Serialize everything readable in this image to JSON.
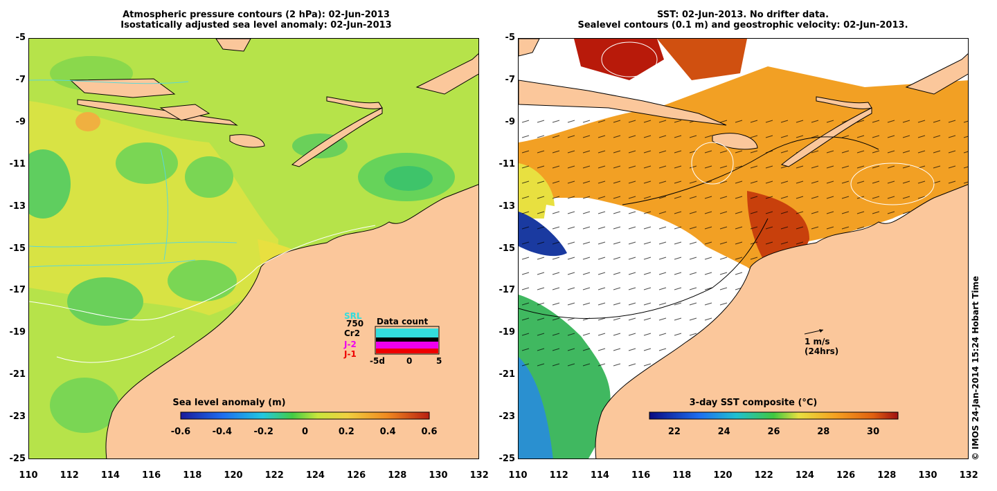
{
  "left_map": {
    "title_line1": "Atmospheric pressure contours (2 hPa): 02-Jun-2013",
    "title_line2": "Isostatically adjusted sea level anomaly: 02-Jun-2013",
    "colorbar": {
      "title": "Sea level anomaly (m)",
      "range": [
        -0.6,
        0.6
      ],
      "tick_labels": [
        "-0.6",
        "-0.4",
        "-0.2",
        "0",
        "0.2",
        "0.4",
        "0.6"
      ]
    },
    "legend": {
      "title": "Data count",
      "satellites": [
        {
          "name": "SRL",
          "color": "#33dddd"
        },
        {
          "name": "750",
          "color": "#000000"
        },
        {
          "name": "Cr2",
          "color": "#000000"
        },
        {
          "name": "J-2",
          "color": "#ee00ee"
        },
        {
          "name": "J-1",
          "color": "#ee0000"
        }
      ],
      "x_tick_labels": [
        "-5d",
        "0",
        "5"
      ]
    }
  },
  "right_map": {
    "title_line1": "SST: 02-Jun-2013. No drifter data.",
    "title_line2": "Sealevel contours (0.1 m) and geostrophic velocity: 02-Jun-2013.",
    "colorbar": {
      "title": "3-day SST composite (°C)",
      "range": [
        21,
        31
      ],
      "tick_labels": [
        "22",
        "24",
        "26",
        "28",
        "30"
      ]
    },
    "scale_arrow": {
      "label1": "1 m/s",
      "label2": "(24hrs)"
    }
  },
  "axes": {
    "y_ticks": [
      "-5",
      "-7",
      "-9",
      "-11",
      "-13",
      "-15",
      "-17",
      "-19",
      "-21",
      "-23",
      "-25"
    ],
    "x_ticks": [
      "110",
      "112",
      "114",
      "116",
      "118",
      "120",
      "122",
      "124",
      "126",
      "128",
      "130",
      "132"
    ]
  },
  "copyright": "© IMOS 24-Jan-2014 15:24 Hobart Time",
  "colors": {
    "land": "#fbc79b",
    "ocean_mid": "#b6e34a",
    "ocean_green": "#66d35a",
    "ocean_yellow": "#e3e34a",
    "sst_orange": "#f2a024",
    "sst_red": "#c8400c"
  }
}
